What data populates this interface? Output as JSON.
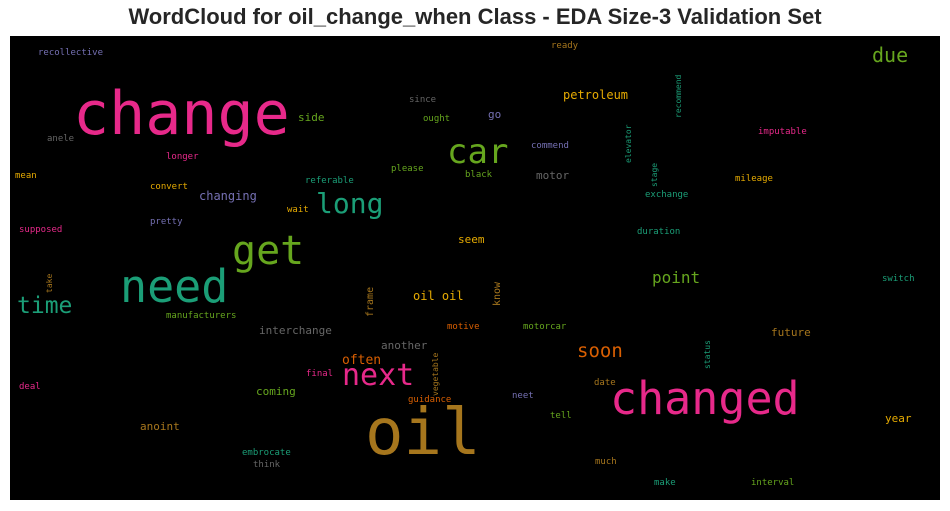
{
  "title": "WordCloud for oil_change_when Class - EDA Size-3 Validation Set",
  "colors": {
    "background": "#000000",
    "title": "#262626"
  },
  "chart_data": {
    "type": "wordcloud",
    "words": [
      {
        "text": "change",
        "color": "#e7298a"
      },
      {
        "text": "oil",
        "color": "#a6761d"
      },
      {
        "text": "changed",
        "color": "#e7298a"
      },
      {
        "text": "need",
        "color": "#1b9e77"
      },
      {
        "text": "get",
        "color": "#66a61e"
      },
      {
        "text": "car",
        "color": "#66a61e"
      },
      {
        "text": "next",
        "color": "#e7298a"
      },
      {
        "text": "long",
        "color": "#1b9e77"
      },
      {
        "text": "time",
        "color": "#1b9e77"
      },
      {
        "text": "due",
        "color": "#66a61e"
      },
      {
        "text": "soon",
        "color": "#d95f02"
      },
      {
        "text": "point",
        "color": "#66a61e"
      },
      {
        "text": "often",
        "color": "#d95f02"
      },
      {
        "text": "petroleum",
        "color": "#e6ab02"
      },
      {
        "text": "oil oil",
        "color": "#e6ab02"
      },
      {
        "text": "changing",
        "color": "#7570b3"
      },
      {
        "text": "interchange",
        "color": "#666666"
      },
      {
        "text": "another",
        "color": "#666666"
      },
      {
        "text": "future",
        "color": "#a6761d"
      },
      {
        "text": "year",
        "color": "#e6ab02"
      },
      {
        "text": "coming",
        "color": "#66a61e"
      },
      {
        "text": "anoint",
        "color": "#a6761d"
      },
      {
        "text": "seem",
        "color": "#e6ab02"
      },
      {
        "text": "side",
        "color": "#66a61e"
      },
      {
        "text": "go",
        "color": "#7570b3"
      },
      {
        "text": "motor",
        "color": "#666666"
      },
      {
        "text": "frame",
        "color": "#a6761d",
        "rotate": true
      },
      {
        "text": "know",
        "color": "#a6761d",
        "rotate": true
      },
      {
        "text": "recommend",
        "color": "#1b9e77",
        "rotate": true
      },
      {
        "text": "elevator",
        "color": "#1b9e77",
        "rotate": true
      },
      {
        "text": "stage",
        "color": "#1b9e77",
        "rotate": true
      },
      {
        "text": "vegetable",
        "color": "#a6761d",
        "rotate": true
      },
      {
        "text": "status",
        "color": "#1b9e77",
        "rotate": true
      },
      {
        "text": "take",
        "color": "#a6761d",
        "rotate": true
      },
      {
        "text": "recollective",
        "color": "#7570b3"
      },
      {
        "text": "ready",
        "color": "#a6761d"
      },
      {
        "text": "since",
        "color": "#666666"
      },
      {
        "text": "ought",
        "color": "#66a61e"
      },
      {
        "text": "commend",
        "color": "#7570b3"
      },
      {
        "text": "imputable",
        "color": "#e7298a"
      },
      {
        "text": "anele",
        "color": "#666666"
      },
      {
        "text": "longer",
        "color": "#e7298a"
      },
      {
        "text": "please",
        "color": "#66a61e"
      },
      {
        "text": "black",
        "color": "#66a61e"
      },
      {
        "text": "mileage",
        "color": "#e6ab02"
      },
      {
        "text": "mean",
        "color": "#e6ab02"
      },
      {
        "text": "convert",
        "color": "#e6ab02"
      },
      {
        "text": "referable",
        "color": "#1b9e77"
      },
      {
        "text": "exchange",
        "color": "#1b9e77"
      },
      {
        "text": "wait",
        "color": "#e6ab02"
      },
      {
        "text": "pretty",
        "color": "#7570b3"
      },
      {
        "text": "supposed",
        "color": "#e7298a"
      },
      {
        "text": "duration",
        "color": "#1b9e77"
      },
      {
        "text": "switch",
        "color": "#1b9e77"
      },
      {
        "text": "manufacturers",
        "color": "#66a61e"
      },
      {
        "text": "motive",
        "color": "#d95f02"
      },
      {
        "text": "motorcar",
        "color": "#66a61e"
      },
      {
        "text": "final",
        "color": "#e7298a"
      },
      {
        "text": "date",
        "color": "#a6761d"
      },
      {
        "text": "deal",
        "color": "#e7298a"
      },
      {
        "text": "guidance",
        "color": "#d95f02"
      },
      {
        "text": "neet",
        "color": "#7570b3"
      },
      {
        "text": "tell",
        "color": "#66a61e"
      },
      {
        "text": "embrocate",
        "color": "#1b9e77"
      },
      {
        "text": "think",
        "color": "#666666"
      },
      {
        "text": "much",
        "color": "#a6761d"
      },
      {
        "text": "make",
        "color": "#1b9e77"
      },
      {
        "text": "interval",
        "color": "#66a61e"
      }
    ]
  }
}
